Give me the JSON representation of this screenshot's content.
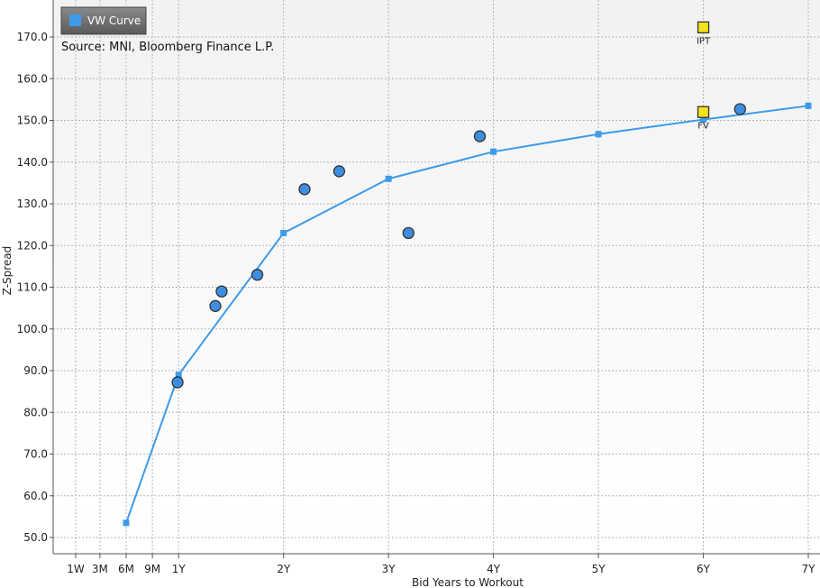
{
  "chart_data": {
    "type": "scatter",
    "title": "",
    "subtitle": "Source: MNI, Bloomberg Finance L.P.",
    "xlabel": "Bid Years to Workout",
    "ylabel": "Z-Spread",
    "xlim": [
      -0.5,
      7.1
    ],
    "ylim": [
      47,
      178
    ],
    "grid": true,
    "legend": {
      "placement": "top-left",
      "entries": [
        "VW Curve"
      ]
    },
    "x_ticks": [
      {
        "value": 0.0192,
        "label": "1W"
      },
      {
        "value": 0.25,
        "label": "3M"
      },
      {
        "value": 0.5,
        "label": "6M"
      },
      {
        "value": 0.75,
        "label": "9M"
      },
      {
        "value": 1,
        "label": "1Y"
      },
      {
        "value": 2,
        "label": "2Y"
      },
      {
        "value": 3,
        "label": "3Y"
      },
      {
        "value": 4,
        "label": "4Y"
      },
      {
        "value": 5,
        "label": "5Y"
      },
      {
        "value": 6,
        "label": "6Y"
      },
      {
        "value": 7,
        "label": "7Y"
      }
    ],
    "y_ticks": [
      {
        "value": 50,
        "label": "50.0"
      },
      {
        "value": 60,
        "label": "60.0"
      },
      {
        "value": 70,
        "label": "70.0"
      },
      {
        "value": 80,
        "label": "80.0"
      },
      {
        "value": 90,
        "label": "90.0"
      },
      {
        "value": 100,
        "label": "100.0"
      },
      {
        "value": 110,
        "label": "110.0"
      },
      {
        "value": 120,
        "label": "120.0"
      },
      {
        "value": 130,
        "label": "130.0"
      },
      {
        "value": 140,
        "label": "140.0"
      },
      {
        "value": 150,
        "label": "150.0"
      },
      {
        "value": 160,
        "label": "160.0"
      },
      {
        "value": 170,
        "label": "170.0"
      }
    ],
    "series": [
      {
        "name": "VW Curve",
        "kind": "line",
        "color": "#3d9be9",
        "x": [
          0.5,
          1,
          2,
          3,
          4,
          5,
          6,
          7
        ],
        "y": [
          53.5,
          89,
          123,
          136,
          142.5,
          146.7,
          150.2,
          153.5
        ]
      },
      {
        "kind": "scatter",
        "color": "#3d8ee0",
        "x": [
          0.99,
          1.35,
          1.41,
          1.75,
          2.2,
          2.53,
          3.19,
          3.87,
          6.35
        ],
        "y": [
          87.2,
          105.5,
          109,
          113,
          133.5,
          137.8,
          123,
          146.2,
          152.7
        ]
      },
      {
        "kind": "marker",
        "color": "#f5e21b",
        "points": [
          {
            "x": 6,
            "y": 172.3,
            "label": "IPT"
          },
          {
            "x": 6,
            "y": 152,
            "label": "FV"
          }
        ]
      }
    ]
  }
}
